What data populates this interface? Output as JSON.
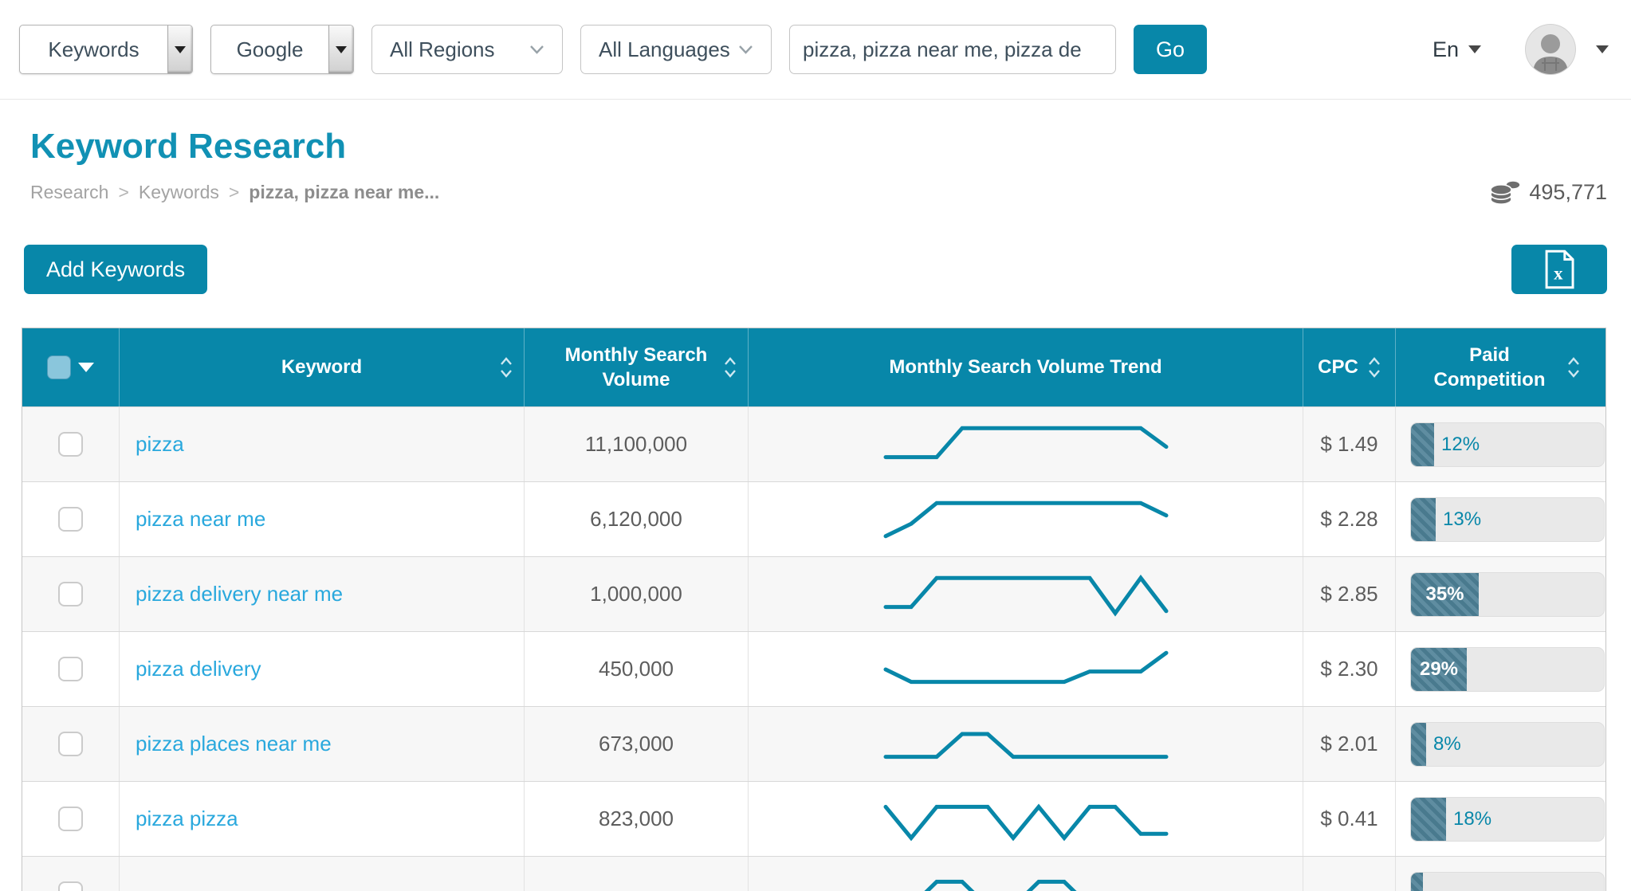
{
  "colors": {
    "primary": "#0887a9",
    "title": "#1191b4",
    "link": "#29a8dd",
    "bar_fill": "#4d8096",
    "bar_track": "#e9e9e9"
  },
  "topbar": {
    "type_select": "Keywords",
    "engine_select": "Google",
    "region_select": "All Regions",
    "language_select": "All Languages",
    "search_value": "pizza, pizza near me, pizza de",
    "go_label": "Go",
    "ui_language": "En"
  },
  "page": {
    "title": "Keyword Research",
    "breadcrumb": [
      "Research",
      "Keywords",
      "pizza, pizza near me..."
    ],
    "credits": "495,771",
    "add_button": "Add Keywords"
  },
  "table": {
    "headers": {
      "keyword": "Keyword",
      "volume": "Monthly Search Volume",
      "trend": "Monthly Search Volume Trend",
      "cpc": "CPC",
      "competition": "Paid Competition"
    },
    "rows": [
      {
        "keyword": "pizza",
        "volume": "11,100,000",
        "cpc": "$ 1.49",
        "competition": 12,
        "competition_label": "12%",
        "trend": [
          2,
          2,
          2,
          9,
          9,
          9,
          9,
          9,
          9,
          9,
          9,
          4.5
        ]
      },
      {
        "keyword": "pizza near me",
        "volume": "6,120,000",
        "cpc": "$ 2.28",
        "competition": 13,
        "competition_label": "13%",
        "trend": [
          1,
          4,
          9,
          9,
          9,
          9,
          9,
          9,
          9,
          9,
          9,
          6
        ]
      },
      {
        "keyword": "pizza delivery near me",
        "volume": "1,000,000",
        "cpc": "$ 2.85",
        "competition": 35,
        "competition_label": "35%",
        "trend": [
          2,
          2,
          9,
          9,
          9,
          9,
          9,
          9,
          9,
          0.5,
          9,
          1
        ]
      },
      {
        "keyword": "pizza delivery",
        "volume": "450,000",
        "cpc": "$ 2.30",
        "competition": 29,
        "competition_label": "29%",
        "trend": [
          5,
          2,
          2,
          2,
          2,
          2,
          2,
          2,
          4.5,
          4.5,
          4.5,
          9
        ]
      },
      {
        "keyword": "pizza places near me",
        "volume": "673,000",
        "cpc": "$ 2.01",
        "competition": 8,
        "competition_label": "8%",
        "trend": [
          2,
          2,
          2,
          7.5,
          7.5,
          2,
          2,
          2,
          2,
          2,
          2,
          2
        ]
      },
      {
        "keyword": "pizza pizza",
        "volume": "823,000",
        "cpc": "$ 0.41",
        "competition": 18,
        "competition_label": "18%",
        "trend": [
          8,
          0.5,
          8,
          8,
          8,
          0.5,
          8,
          0.5,
          8,
          8,
          1.5,
          1.5
        ]
      },
      {
        "keyword": "",
        "volume": "",
        "cpc": "",
        "competition": 6,
        "competition_label": "",
        "trend": [
          2,
          2,
          8,
          8,
          2,
          2,
          8,
          8,
          2,
          2,
          2,
          2
        ]
      }
    ]
  }
}
